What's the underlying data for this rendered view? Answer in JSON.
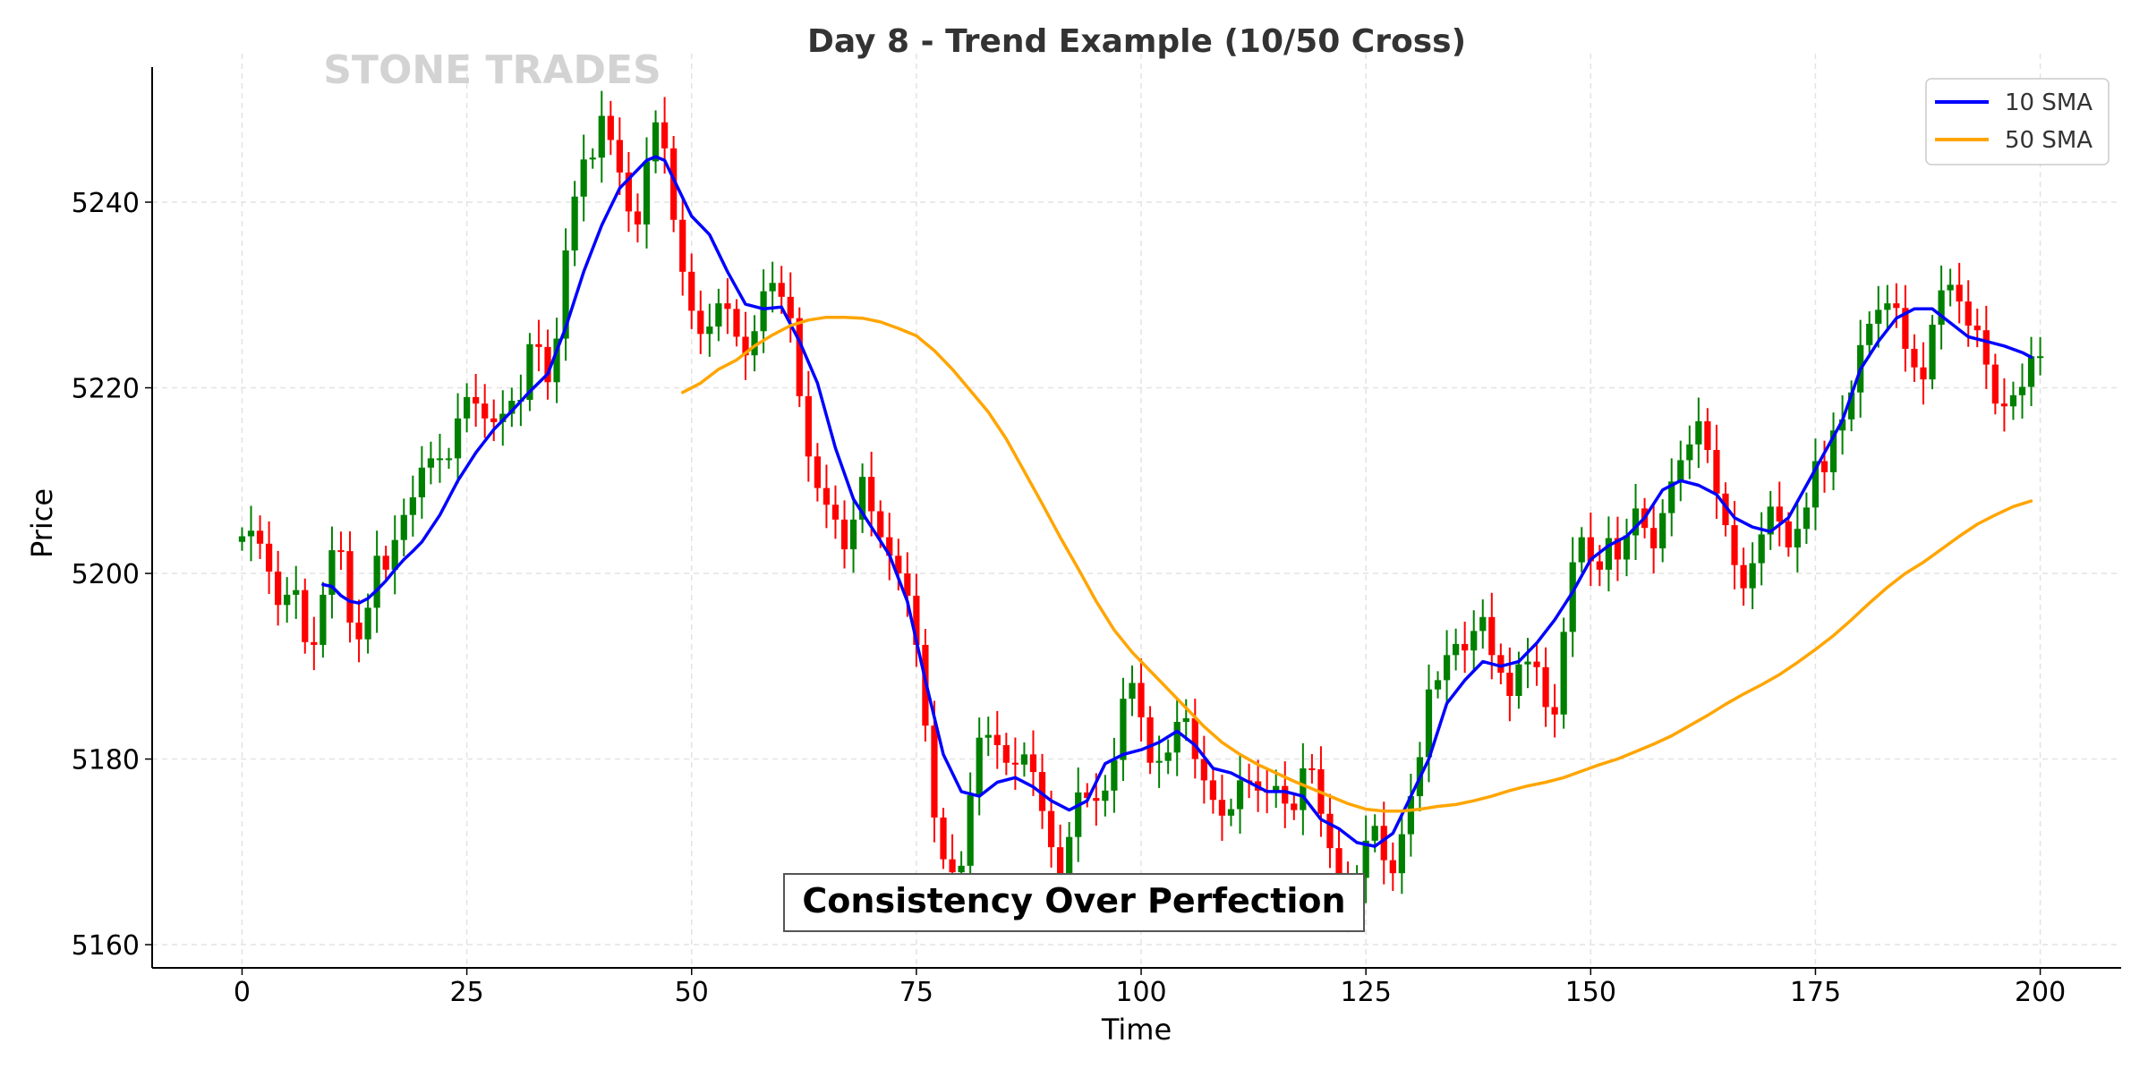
{
  "chart_data": {
    "type": "candlestick",
    "title": "Day 8 - Trend Example (10/50 Cross)",
    "xlabel": "Time",
    "ylabel": "Price",
    "xlim": [
      -10,
      209
    ],
    "ylim": [
      5157.5,
      5256
    ],
    "x_ticks": [
      0,
      25,
      50,
      75,
      100,
      125,
      150,
      175,
      200
    ],
    "y_ticks": [
      5160,
      5180,
      5200,
      5220,
      5240
    ],
    "grid": true,
    "legend_position": "top-right",
    "watermark": "STONE TRADES",
    "annotation": "Consistency Over Perfection",
    "up_color": "#008000",
    "down_color": "#ff0000",
    "candles_close": [
      5204,
      5204.6,
      5203.2,
      5200.2,
      5196.6,
      5197.7,
      5198.2,
      5192.6,
      5192.3,
      5197.7,
      5202.5,
      5202.4,
      5194.7,
      5192.9,
      5196.3,
      5201.9,
      5200.4,
      5203.6,
      5206.3,
      5208.2,
      5211.4,
      5212.4,
      5212.4,
      5212.4,
      5216.7,
      5219,
      5218.3,
      5216.7,
      5216.3,
      5217.2,
      5218.6,
      5218.7,
      5224.7,
      5224.4,
      5220.6,
      5225.3,
      5234.8,
      5240.6,
      5244.6,
      5244.8,
      5249.3,
      5246.7,
      5243.2,
      5239,
      5237.6,
      5244.4,
      5248.6,
      5245.8,
      5238.1,
      5232.5,
      5228.3,
      5225.8,
      5226.6,
      5229.1,
      5228.5,
      5225.5,
      5223.5,
      5226.1,
      5230.4,
      5231.3,
      5229.8,
      5227.5,
      5219.1,
      5212.6,
      5209.2,
      5207.4,
      5205.8,
      5202.6,
      5205.8,
      5210.4,
      5206.7,
      5203.9,
      5201.9,
      5200,
      5197.6,
      5192.3,
      5183.6,
      5173.7,
      5169.2,
      5167.8,
      5168.5,
      5176.1,
      5182.3,
      5182.6,
      5181.5,
      5179.6,
      5179.4,
      5180.5,
      5178.6,
      5174.4,
      5170.5,
      5167.2,
      5171.6,
      5176.4,
      5175.8,
      5175.5,
      5176.6,
      5179.9,
      5186.5,
      5188.2,
      5184.5,
      5179.6,
      5179.8,
      5180.7,
      5184,
      5184.4,
      5180,
      5177.7,
      5175.6,
      5173.9,
      5174.6,
      5177.7,
      5177.6,
      5176.6,
      5176.5,
      5177.1,
      5175.2,
      5174.5,
      5179,
      5178.9,
      5174.1,
      5170.4,
      5166.4,
      5163.9,
      5167.2,
      5171.2,
      5172.8,
      5169.1,
      5167.7,
      5171.9,
      5176,
      5180.2,
      5187.5,
      5188.5,
      5191.2,
      5192.4,
      5191.7,
      5193.8,
      5195.3,
      5191.2,
      5189.3,
      5186.8,
      5190.2,
      5190.5,
      5189.9,
      5185.6,
      5184.8,
      5193.7,
      5201.2,
      5203.9,
      5201.3,
      5200.4,
      5203.8,
      5201.5,
      5204.1,
      5207,
      5204.9,
      5202.7,
      5206.5,
      5209.9,
      5212.2,
      5213.9,
      5216.4,
      5213.3,
      5208.6,
      5205.2,
      5200.9,
      5198.4,
      5201.1,
      5204.2,
      5207.2,
      5205.6,
      5202.8,
      5204.8,
      5207.1,
      5212.1,
      5210.9,
      5215.4,
      5216.6,
      5219.5,
      5224.6,
      5226.9,
      5228.4,
      5229.1,
      5228.6,
      5224.2,
      5222.2,
      5220.9,
      5226.8,
      5230.5,
      5231.1,
      5229.3,
      5226.7,
      5226.2,
      5222.5,
      5218.3,
      5218,
      5219.2,
      5220.1,
      5223.4,
      5223.4
    ],
    "series": [
      {
        "name": "10 SMA",
        "color": "#0000ff",
        "points": [
          [
            9,
            5198.8
          ],
          [
            10,
            5198.6
          ],
          [
            11,
            5197.6
          ],
          [
            12,
            5197.0
          ],
          [
            13,
            5196.8
          ],
          [
            14,
            5197.3
          ],
          [
            15,
            5198.2
          ],
          [
            16,
            5199.2
          ],
          [
            17,
            5200.4
          ],
          [
            18,
            5201.5
          ],
          [
            19,
            5202.4
          ],
          [
            20,
            5203.4
          ],
          [
            22,
            5206.3
          ],
          [
            24,
            5210
          ],
          [
            26,
            5213
          ],
          [
            28,
            5215.5
          ],
          [
            30,
            5217.5
          ],
          [
            32,
            5219.6
          ],
          [
            34,
            5221.5
          ],
          [
            36,
            5226.5
          ],
          [
            38,
            5232.5
          ],
          [
            40,
            5237.5
          ],
          [
            42,
            5241.5
          ],
          [
            44,
            5243.5
          ],
          [
            45,
            5244.5
          ],
          [
            46,
            5244.9
          ],
          [
            47,
            5244.5
          ],
          [
            48,
            5242.5
          ],
          [
            50,
            5238.5
          ],
          [
            52,
            5236.5
          ],
          [
            54,
            5232.5
          ],
          [
            56,
            5229.0
          ],
          [
            58,
            5228.5
          ],
          [
            60,
            5228.7
          ],
          [
            62,
            5225.0
          ],
          [
            64,
            5220.5
          ],
          [
            66,
            5213.5
          ],
          [
            68,
            5208.0
          ],
          [
            70,
            5205.0
          ],
          [
            72,
            5202.0
          ],
          [
            74,
            5197.0
          ],
          [
            76,
            5188.5
          ],
          [
            78,
            5180.5
          ],
          [
            80,
            5176.5
          ],
          [
            82,
            5176.0
          ],
          [
            84,
            5177.5
          ],
          [
            86,
            5178.0
          ],
          [
            88,
            5177.0
          ],
          [
            90,
            5175.5
          ],
          [
            92,
            5174.5
          ],
          [
            94,
            5175.5
          ],
          [
            96,
            5179.5
          ],
          [
            98,
            5180.5
          ],
          [
            100,
            5181.0
          ],
          [
            102,
            5181.8
          ],
          [
            104,
            5183.0
          ],
          [
            106,
            5181.5
          ],
          [
            108,
            5179.0
          ],
          [
            110,
            5178.5
          ],
          [
            112,
            5177.5
          ],
          [
            114,
            5176.5
          ],
          [
            116,
            5176.5
          ],
          [
            118,
            5176.0
          ],
          [
            120,
            5173.5
          ],
          [
            122,
            5172.5
          ],
          [
            124,
            5171.0
          ],
          [
            126,
            5170.6
          ],
          [
            128,
            5172.0
          ],
          [
            130,
            5176.0
          ],
          [
            132,
            5180.0
          ],
          [
            134,
            5186.0
          ],
          [
            136,
            5188.5
          ],
          [
            138,
            5190.5
          ],
          [
            140,
            5190.0
          ],
          [
            142,
            5190.5
          ],
          [
            144,
            5192.5
          ],
          [
            146,
            5195.0
          ],
          [
            148,
            5198.0
          ],
          [
            150,
            5201.5
          ],
          [
            152,
            5203.0
          ],
          [
            154,
            5204.0
          ],
          [
            156,
            5206.0
          ],
          [
            158,
            5209.0
          ],
          [
            160,
            5210.0
          ],
          [
            162,
            5209.5
          ],
          [
            164,
            5208.5
          ],
          [
            166,
            5206.0
          ],
          [
            168,
            5205.0
          ],
          [
            170,
            5204.5
          ],
          [
            172,
            5206.0
          ],
          [
            174,
            5209.5
          ],
          [
            176,
            5213.0
          ],
          [
            178,
            5216.5
          ],
          [
            180,
            5222.0
          ],
          [
            182,
            5225.0
          ],
          [
            184,
            5227.5
          ],
          [
            186,
            5228.5
          ],
          [
            188,
            5228.5
          ],
          [
            190,
            5227.0
          ],
          [
            192,
            5225.5
          ],
          [
            194,
            5225.0
          ],
          [
            196,
            5224.5
          ],
          [
            198,
            5223.8
          ],
          [
            199,
            5223.3
          ]
        ]
      },
      {
        "name": "50 SMA",
        "color": "#ffa500",
        "points": [
          [
            49,
            5219.5
          ],
          [
            51,
            5220.5
          ],
          [
            53,
            5222.0
          ],
          [
            55,
            5223.0
          ],
          [
            57,
            5224.5
          ],
          [
            59,
            5225.7
          ],
          [
            61,
            5226.7
          ],
          [
            63,
            5227.3
          ],
          [
            65,
            5227.6
          ],
          [
            67,
            5227.6
          ],
          [
            69,
            5227.5
          ],
          [
            71,
            5227.1
          ],
          [
            73,
            5226.4
          ],
          [
            75,
            5225.6
          ],
          [
            77,
            5224.0
          ],
          [
            79,
            5222.0
          ],
          [
            81,
            5219.7
          ],
          [
            83,
            5217.4
          ],
          [
            85,
            5214.5
          ],
          [
            87,
            5211.0
          ],
          [
            89,
            5207.5
          ],
          [
            91,
            5203.9
          ],
          [
            93,
            5200.5
          ],
          [
            95,
            5197.0
          ],
          [
            97,
            5193.9
          ],
          [
            99,
            5191.5
          ],
          [
            101,
            5189.5
          ],
          [
            103,
            5187.5
          ],
          [
            105,
            5185.5
          ],
          [
            107,
            5183.5
          ],
          [
            109,
            5181.8
          ],
          [
            111,
            5180.5
          ],
          [
            113,
            5179.4
          ],
          [
            115,
            5178.5
          ],
          [
            117,
            5177.6
          ],
          [
            119,
            5176.8
          ],
          [
            121,
            5176.0
          ],
          [
            123,
            5175.2
          ],
          [
            125,
            5174.6
          ],
          [
            127,
            5174.4
          ],
          [
            129,
            5174.4
          ],
          [
            131,
            5174.6
          ],
          [
            133,
            5174.9
          ],
          [
            135,
            5175.1
          ],
          [
            137,
            5175.5
          ],
          [
            139,
            5176.0
          ],
          [
            141,
            5176.6
          ],
          [
            143,
            5177.1
          ],
          [
            145,
            5177.5
          ],
          [
            147,
            5178.0
          ],
          [
            149,
            5178.7
          ],
          [
            151,
            5179.4
          ],
          [
            153,
            5180.0
          ],
          [
            155,
            5180.8
          ],
          [
            157,
            5181.6
          ],
          [
            159,
            5182.5
          ],
          [
            161,
            5183.6
          ],
          [
            163,
            5184.7
          ],
          [
            165,
            5185.9
          ],
          [
            167,
            5187.0
          ],
          [
            169,
            5188.0
          ],
          [
            171,
            5189.1
          ],
          [
            173,
            5190.4
          ],
          [
            175,
            5191.8
          ],
          [
            177,
            5193.3
          ],
          [
            179,
            5195.0
          ],
          [
            181,
            5196.8
          ],
          [
            183,
            5198.5
          ],
          [
            185,
            5200.0
          ],
          [
            187,
            5201.2
          ],
          [
            189,
            5202.6
          ],
          [
            191,
            5204.0
          ],
          [
            193,
            5205.3
          ],
          [
            195,
            5206.3
          ],
          [
            197,
            5207.2
          ],
          [
            199,
            5207.8
          ]
        ]
      }
    ]
  }
}
